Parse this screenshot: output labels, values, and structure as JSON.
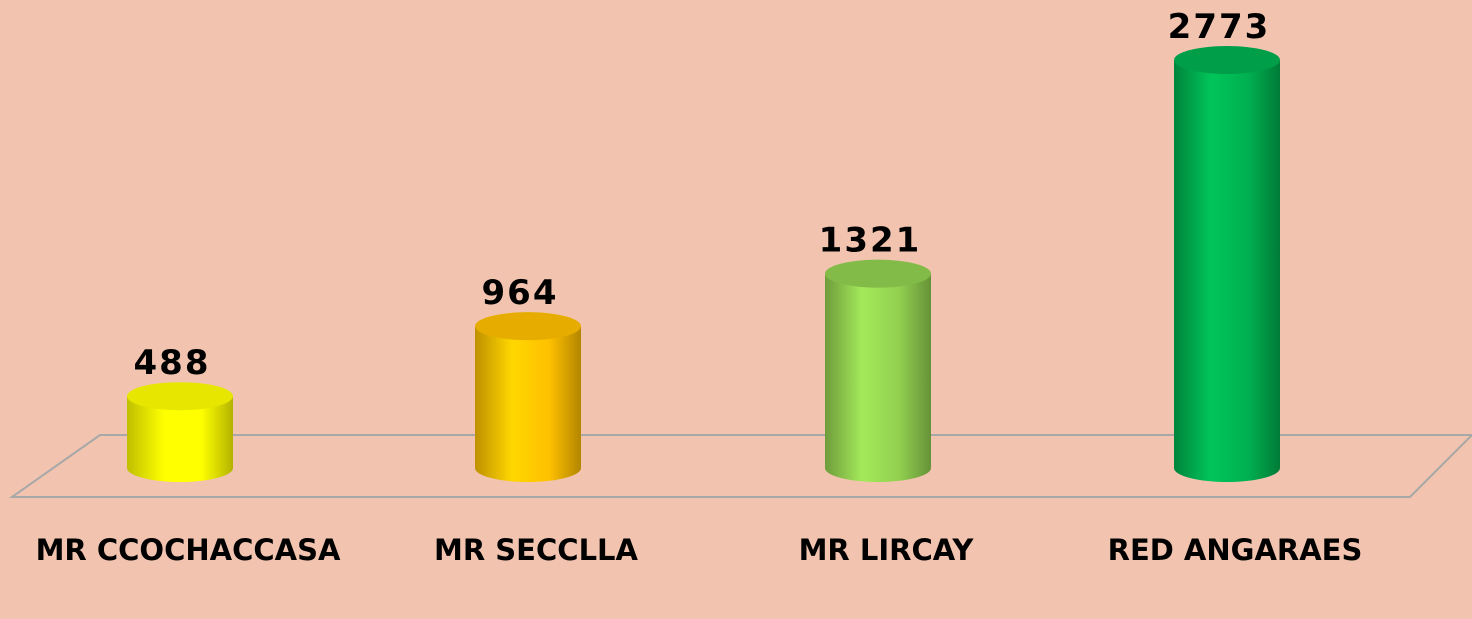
{
  "chart_data": {
    "type": "bar",
    "categories": [
      "MR CCOCHACCASA",
      "MR SECCLLA",
      "MR LIRCAY",
      "RED ANGARAES"
    ],
    "values": [
      488,
      964,
      1321,
      2773
    ],
    "colors": [
      "#ffff00",
      "#ffc000",
      "#92d050",
      "#00b050"
    ]
  }
}
